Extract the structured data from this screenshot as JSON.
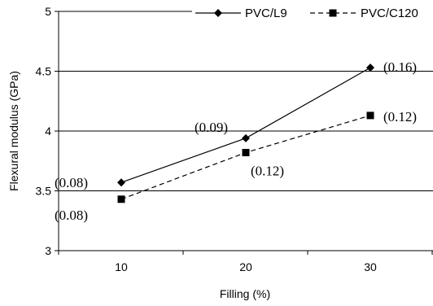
{
  "chart_data": {
    "type": "line",
    "x": [
      10,
      20,
      30
    ],
    "xlabel": "Filling (%)",
    "ylabel": "Flexural modulus (GPa)",
    "ylim": [
      3,
      5
    ],
    "yticks": [
      "3",
      "3.5",
      "4",
      "4.5",
      "5"
    ],
    "xticks": [
      "10",
      "20",
      "30"
    ],
    "grid": "horizontal",
    "legend_position": "top-right",
    "series": [
      {
        "name": "PVC/L9",
        "values": [
          3.57,
          3.94,
          4.53
        ],
        "labels": [
          "(0.08)",
          "(0.09)",
          "(0.16)"
        ],
        "line_style": "solid",
        "marker": "diamond",
        "color": "#000000"
      },
      {
        "name": "PVC/C120",
        "values": [
          3.43,
          3.82,
          4.13
        ],
        "labels": [
          "(0.08)",
          "(0.12)",
          "(0.12)"
        ],
        "line_style": "dashed",
        "marker": "square",
        "color": "#000000"
      }
    ]
  }
}
